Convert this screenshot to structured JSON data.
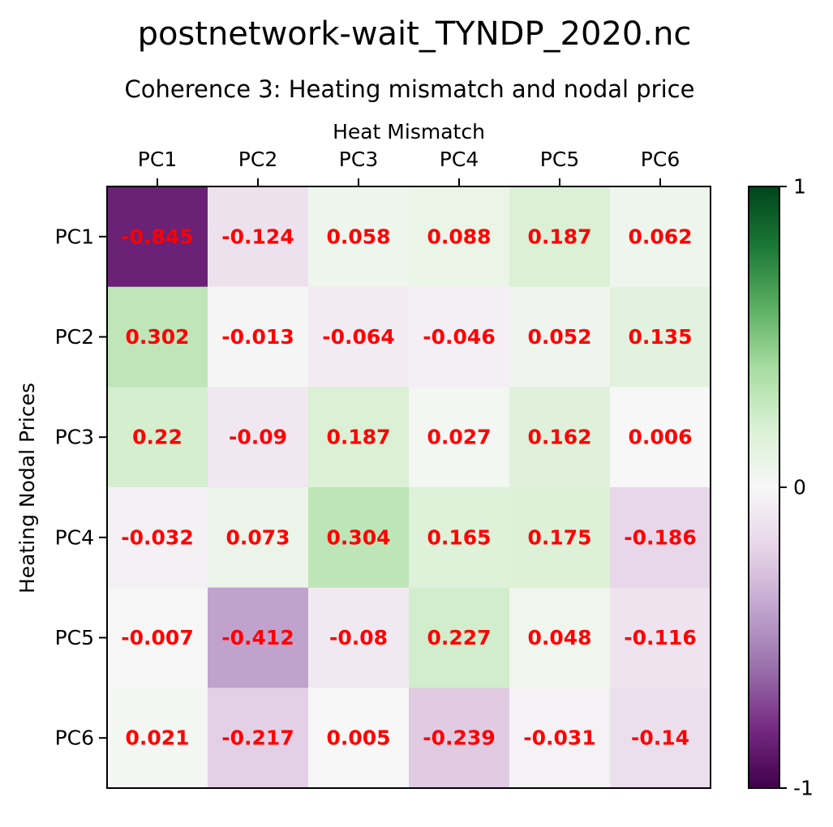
{
  "figure": {
    "suptitle": "postnetwork-wait_TYNDP_2020.nc"
  },
  "chart_data": {
    "type": "heatmap",
    "title": "Coherence 3: Heating mismatch and nodal price",
    "xlabel": "Heat Mismatch",
    "ylabel": "Heating Nodal Prices",
    "x_categories": [
      "PC1",
      "PC2",
      "PC3",
      "PC4",
      "PC5",
      "PC6"
    ],
    "y_categories": [
      "PC1",
      "PC2",
      "PC3",
      "PC4",
      "PC5",
      "PC6"
    ],
    "values": [
      [
        -0.845,
        -0.124,
        0.058,
        0.088,
        0.187,
        0.062
      ],
      [
        0.302,
        -0.013,
        -0.064,
        -0.046,
        0.052,
        0.135
      ],
      [
        0.22,
        -0.09,
        0.187,
        0.027,
        0.162,
        0.006
      ],
      [
        -0.032,
        0.073,
        0.304,
        0.165,
        0.175,
        -0.186
      ],
      [
        -0.007,
        -0.412,
        -0.08,
        0.227,
        0.048,
        -0.116
      ],
      [
        0.021,
        -0.217,
        0.005,
        -0.239,
        -0.031,
        -0.14
      ]
    ],
    "colormap": "PRGn",
    "vmin": -1,
    "vmax": 1,
    "colorbar_ticks": [
      {
        "value": 1,
        "label": "1"
      },
      {
        "value": 0,
        "label": "0"
      },
      {
        "value": -1,
        "label": "-1"
      }
    ],
    "annotation_color": "#ff0000",
    "x_axis_position": "top"
  }
}
